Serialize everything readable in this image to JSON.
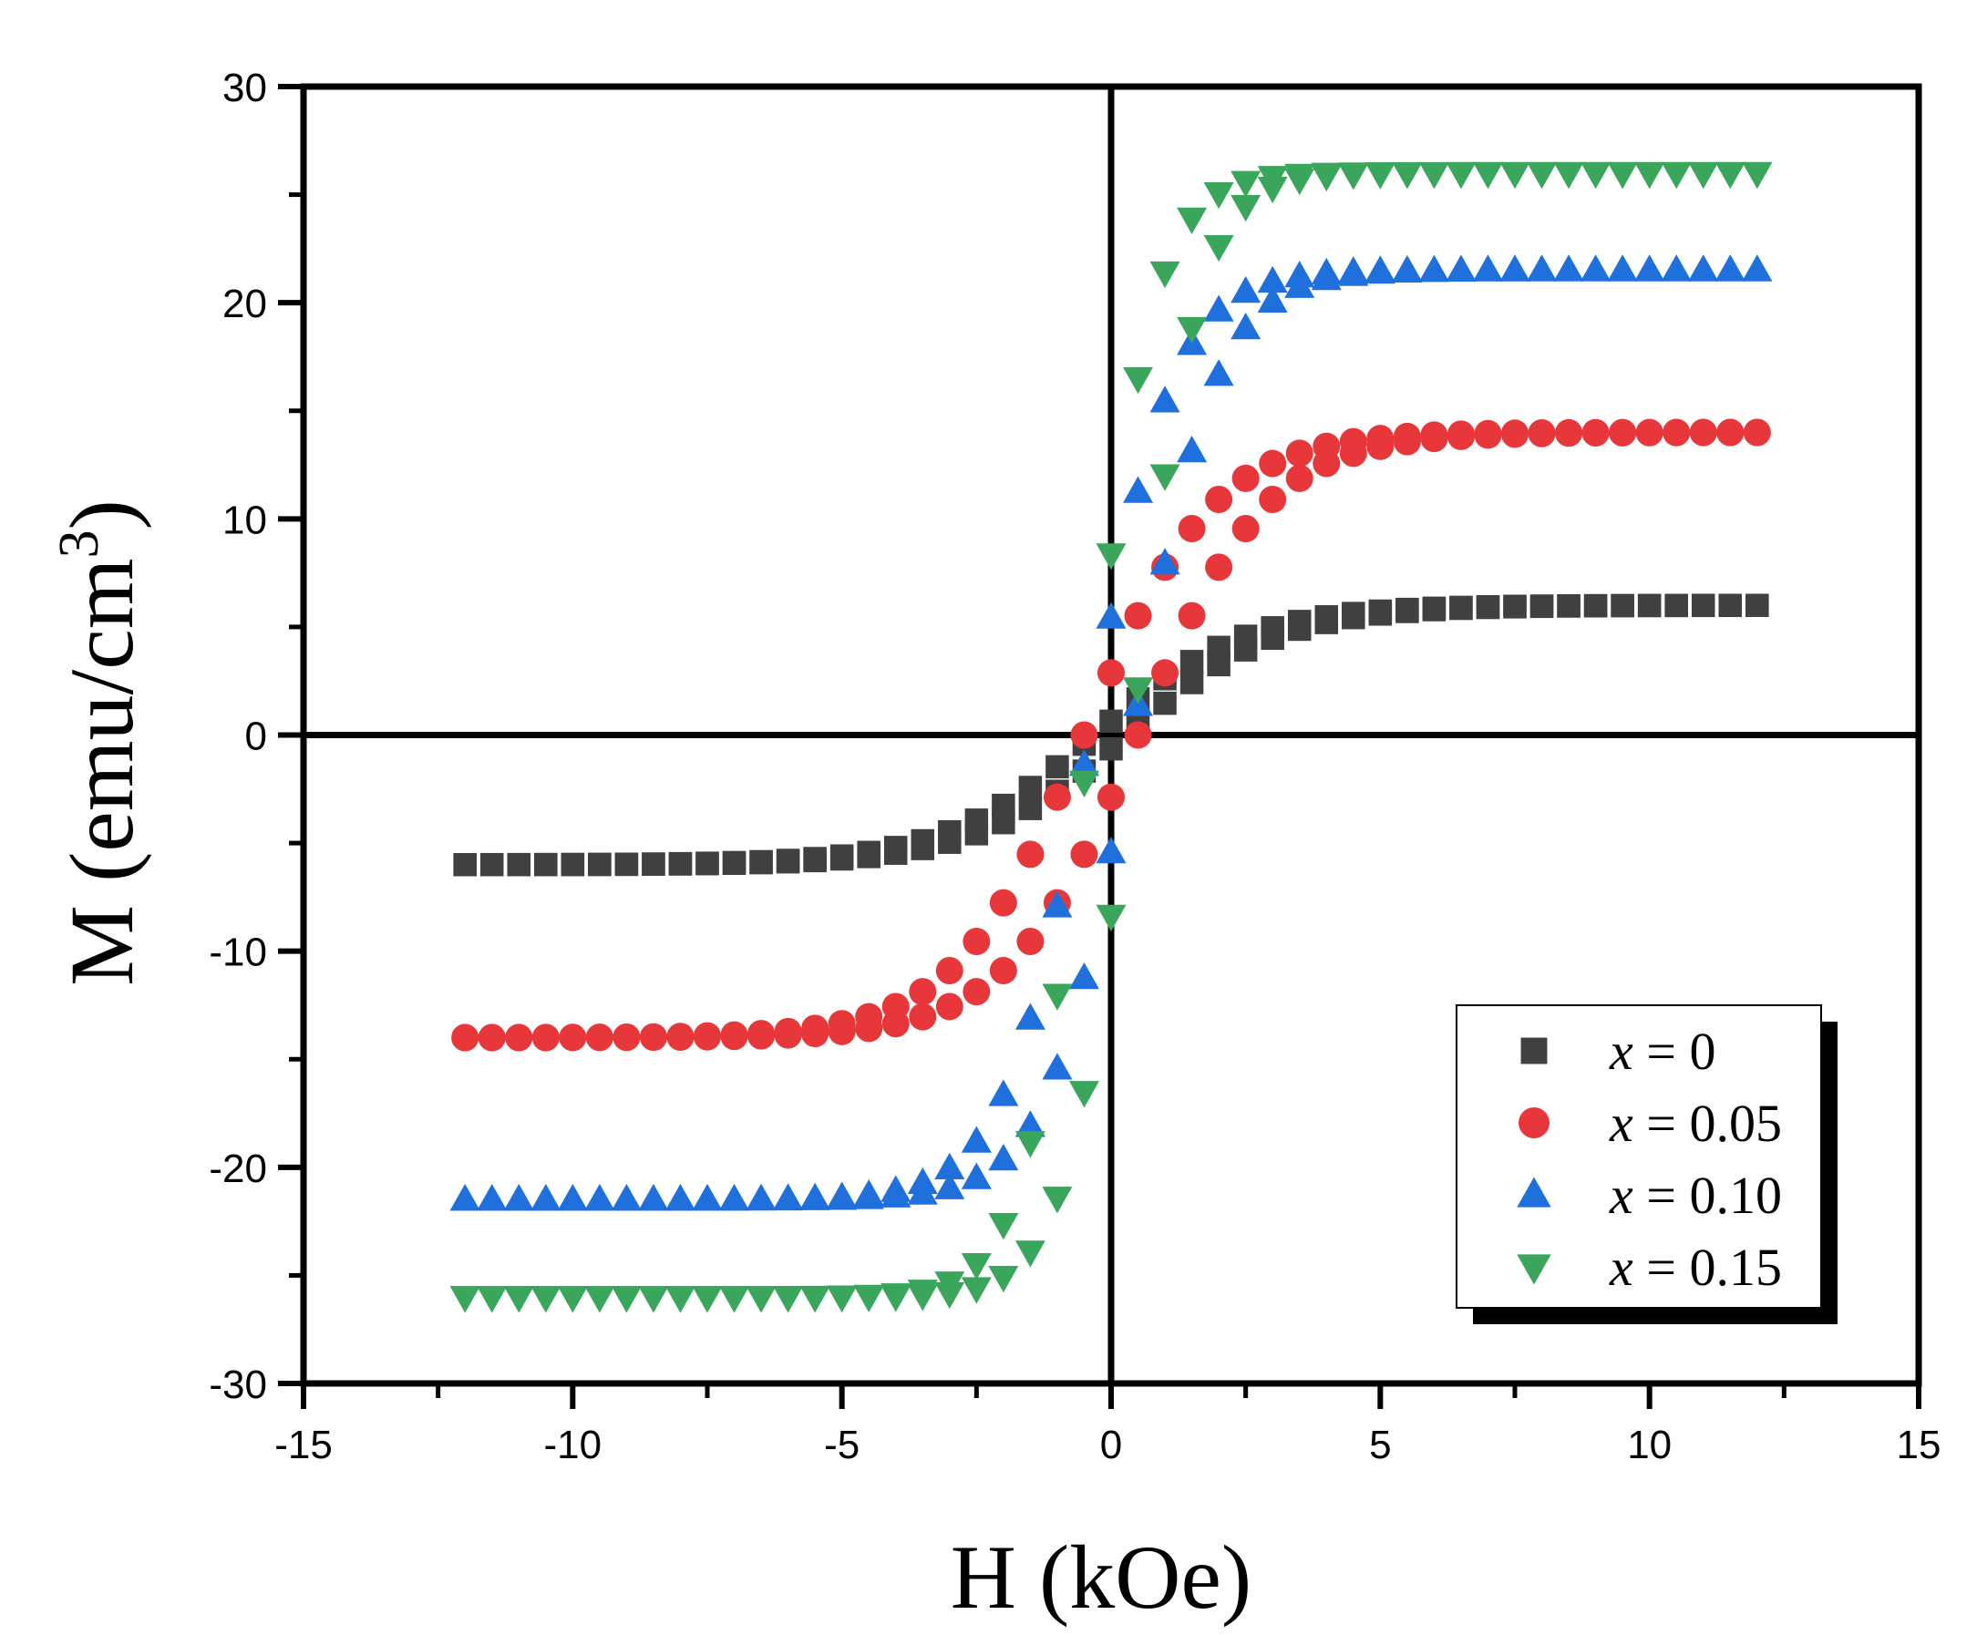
{
  "chart_data": {
    "type": "scatter",
    "title": "",
    "xlabel": "H (kOe)",
    "ylabel": {
      "base": "M (emu/cm",
      "sup": "3",
      "close": ")"
    },
    "xlim": [
      -15,
      15
    ],
    "ylim": [
      -30,
      30
    ],
    "xticks": [
      -15,
      -10,
      -5,
      0,
      5,
      10,
      15
    ],
    "xtick_labels": [
      "-15",
      "-10",
      "-5",
      "0",
      "5",
      "10",
      "15"
    ],
    "yticks": [
      -30,
      -20,
      -10,
      0,
      10,
      20,
      30
    ],
    "ytick_labels": [
      "-30",
      "-20",
      "-10",
      "0",
      "10",
      "20",
      "30"
    ],
    "grid": false,
    "legend_position": "bottom-right",
    "legend": {
      "var": "x",
      "eq": " = ",
      "values": [
        "0",
        "0.05",
        "0.10",
        "0.15"
      ]
    },
    "series": [
      {
        "name": "x = 0",
        "marker": "square",
        "color": "#404040",
        "Ms": 6.0,
        "H0": 2.8,
        "Hc": 0.3
      },
      {
        "name": "x = 0.05",
        "marker": "circle",
        "color": "#e8373a",
        "Ms": 14.0,
        "H0": 2.4,
        "Hc": 0.5
      },
      {
        "name": "x = 0.10",
        "marker": "triangle-up",
        "color": "#1f6fdc",
        "Ms": 21.5,
        "H0": 1.55,
        "Hc": 0.4
      },
      {
        "name": "x = 0.15",
        "marker": "triangle-down",
        "color": "#3aa65c",
        "Ms": 26.0,
        "H0": 1.2,
        "Hc": 0.4
      }
    ],
    "field_range": [
      -12,
      12
    ],
    "field_step": 0.5
  }
}
